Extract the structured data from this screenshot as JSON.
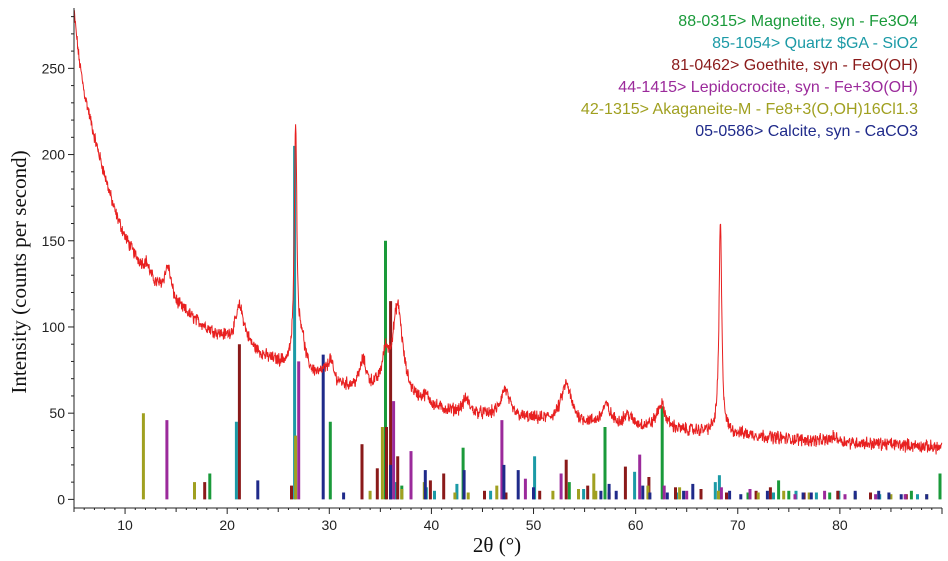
{
  "chart_data": {
    "type": "line",
    "xlabel": "2θ (°)",
    "ylabel": "Intensity (counts per second)",
    "xlim": [
      5,
      90
    ],
    "ylim": [
      -5,
      285
    ],
    "x_ticks": [
      10,
      20,
      30,
      40,
      50,
      60,
      70,
      80
    ],
    "y_ticks": [
      0,
      50,
      100,
      150,
      200,
      250
    ],
    "grid": false,
    "legend_position": "top-right",
    "pattern": {
      "color": "#e82020",
      "baseline": [
        [
          5,
          283
        ],
        [
          5.5,
          255
        ],
        [
          6,
          236
        ],
        [
          7,
          210
        ],
        [
          8,
          188
        ],
        [
          9,
          167
        ],
        [
          10,
          152
        ],
        [
          11,
          141
        ],
        [
          12,
          132
        ],
        [
          13,
          124
        ],
        [
          14,
          118
        ],
        [
          15,
          112
        ],
        [
          16,
          108
        ],
        [
          17,
          103
        ],
        [
          18,
          99
        ],
        [
          19,
          95
        ],
        [
          20,
          92
        ],
        [
          22,
          86
        ],
        [
          24,
          81
        ],
        [
          26,
          77
        ],
        [
          28,
          73
        ],
        [
          30,
          68
        ],
        [
          32,
          64
        ],
        [
          34,
          62
        ],
        [
          36,
          60
        ],
        [
          38,
          56
        ],
        [
          40,
          52
        ],
        [
          44,
          49
        ],
        [
          48,
          47
        ],
        [
          52,
          45
        ],
        [
          56,
          43
        ],
        [
          60,
          42
        ],
        [
          64,
          40
        ],
        [
          70,
          38
        ],
        [
          75,
          35
        ],
        [
          80,
          33
        ],
        [
          85,
          32
        ],
        [
          90,
          30
        ]
      ],
      "peaks": [
        {
          "x": 12.1,
          "height": 6,
          "width": 0.3
        },
        {
          "x": 14.2,
          "height": 18,
          "width": 0.4
        },
        {
          "x": 21.2,
          "height": 14,
          "width": 0.4
        },
        {
          "x": 21.4,
          "height": 10,
          "width": 0.8
        },
        {
          "x": 26.7,
          "height": 140,
          "width": 0.15
        },
        {
          "x": 27.3,
          "height": 18,
          "width": 0.35
        },
        {
          "x": 29.5,
          "height": 3,
          "width": 0.3
        },
        {
          "x": 30.1,
          "height": 12,
          "width": 0.3
        },
        {
          "x": 33.3,
          "height": 16,
          "width": 0.4
        },
        {
          "x": 35.5,
          "height": 18,
          "width": 0.4
        },
        {
          "x": 36.7,
          "height": 52,
          "width": 0.6
        },
        {
          "x": 39.5,
          "height": 5,
          "width": 0.5
        },
        {
          "x": 43.4,
          "height": 8,
          "width": 0.4
        },
        {
          "x": 47.2,
          "height": 16,
          "width": 0.5
        },
        {
          "x": 53.2,
          "height": 22,
          "width": 0.6
        },
        {
          "x": 57.1,
          "height": 11,
          "width": 0.5
        },
        {
          "x": 59.2,
          "height": 6,
          "width": 0.5
        },
        {
          "x": 62.5,
          "height": 14,
          "width": 0.5
        },
        {
          "x": 68.3,
          "height": 122,
          "width": 0.16
        },
        {
          "x": 79.5,
          "height": 3,
          "width": 0.5
        }
      ]
    },
    "series": [
      {
        "name": "88-0315> Magnetite, syn - Fe3O4",
        "color": "#1a9a3a",
        "sticks": [
          [
            18.3,
            15
          ],
          [
            30.1,
            45
          ],
          [
            35.5,
            150
          ],
          [
            37.1,
            8
          ],
          [
            43.1,
            30
          ],
          [
            53.5,
            10
          ],
          [
            57.0,
            42
          ],
          [
            62.6,
            54
          ],
          [
            71.0,
            4
          ],
          [
            74.0,
            11
          ],
          [
            75.0,
            5
          ],
          [
            79.0,
            4
          ],
          [
            87.0,
            5
          ],
          [
            89.8,
            15
          ]
        ]
      },
      {
        "name": "85-1054> Quartz $GA - SiO2",
        "color": "#1b9aa6",
        "sticks": [
          [
            20.9,
            45
          ],
          [
            26.6,
            205
          ],
          [
            36.5,
            10
          ],
          [
            39.5,
            7
          ],
          [
            40.3,
            5
          ],
          [
            42.5,
            9
          ],
          [
            45.8,
            5
          ],
          [
            50.1,
            25
          ],
          [
            54.9,
            6
          ],
          [
            59.9,
            16
          ],
          [
            64.0,
            4
          ],
          [
            67.8,
            10
          ],
          [
            68.2,
            14
          ],
          [
            73.5,
            4
          ],
          [
            75.7,
            5
          ],
          [
            77.7,
            4
          ],
          [
            79.9,
            5
          ],
          [
            81.5,
            4
          ],
          [
            83.9,
            3
          ],
          [
            87.6,
            3
          ]
        ]
      },
      {
        "name": "81-0462> Goethite, syn - FeO(OH)",
        "color": "#8a1a1a",
        "sticks": [
          [
            17.8,
            10
          ],
          [
            21.2,
            90
          ],
          [
            26.3,
            8
          ],
          [
            33.2,
            32
          ],
          [
            34.7,
            18
          ],
          [
            35.6,
            42
          ],
          [
            36.0,
            115
          ],
          [
            36.7,
            25
          ],
          [
            39.9,
            11
          ],
          [
            41.2,
            15
          ],
          [
            45.2,
            5
          ],
          [
            47.3,
            4
          ],
          [
            50.6,
            5
          ],
          [
            53.2,
            23
          ],
          [
            55.3,
            8
          ],
          [
            57.4,
            4
          ],
          [
            59.0,
            19
          ],
          [
            61.3,
            13
          ],
          [
            63.9,
            7
          ],
          [
            66.4,
            6
          ],
          [
            68.9,
            4
          ],
          [
            71.8,
            5
          ],
          [
            73.2,
            7
          ],
          [
            76.5,
            4
          ],
          [
            79.8,
            5
          ],
          [
            83.0,
            4
          ],
          [
            86.5,
            3
          ]
        ]
      },
      {
        "name": "44-1415> Lepidocrocite, syn - Fe+3O(OH)",
        "color": "#9b2a9b",
        "sticks": [
          [
            14.1,
            46
          ],
          [
            27.0,
            80
          ],
          [
            36.3,
            57
          ],
          [
            38.0,
            28
          ],
          [
            46.9,
            46
          ],
          [
            49.2,
            12
          ],
          [
            52.7,
            15
          ],
          [
            60.4,
            26
          ],
          [
            62.8,
            8
          ],
          [
            65.0,
            5
          ],
          [
            68.4,
            7
          ],
          [
            71.2,
            6
          ],
          [
            75.6,
            3
          ],
          [
            78.5,
            5
          ],
          [
            80.5,
            3
          ],
          [
            83.5,
            3
          ],
          [
            86.4,
            3
          ]
        ]
      },
      {
        "name": "42-1315> Akaganeite-M - Fe8+3(O,OH)16Cl1.3",
        "color": "#a0a020",
        "sticks": [
          [
            11.8,
            50
          ],
          [
            16.8,
            10
          ],
          [
            26.7,
            37
          ],
          [
            34.0,
            5
          ],
          [
            35.2,
            42
          ],
          [
            37.1,
            6
          ],
          [
            39.3,
            10
          ],
          [
            42.3,
            4
          ],
          [
            43.6,
            4
          ],
          [
            46.4,
            8
          ],
          [
            51.9,
            5
          ],
          [
            54.4,
            6
          ],
          [
            55.9,
            15
          ],
          [
            56.1,
            5
          ],
          [
            61.2,
            8
          ],
          [
            64.3,
            7
          ],
          [
            68.1,
            5
          ],
          [
            72.0,
            4
          ],
          [
            74.5,
            5
          ],
          [
            77.0,
            4
          ],
          [
            81.5,
            3
          ],
          [
            85.0,
            3
          ],
          [
            88.5,
            3
          ]
        ]
      },
      {
        "name": "05-0586> Calcite, syn - CaCO3",
        "color": "#1f2a8a",
        "sticks": [
          [
            23.0,
            11
          ],
          [
            29.4,
            84
          ],
          [
            31.4,
            4
          ],
          [
            36.0,
            20
          ],
          [
            39.4,
            17
          ],
          [
            43.2,
            17
          ],
          [
            47.1,
            20
          ],
          [
            48.5,
            17
          ],
          [
            50.0,
            7
          ],
          [
            56.6,
            5
          ],
          [
            57.4,
            9
          ],
          [
            58.1,
            5
          ],
          [
            60.7,
            8
          ],
          [
            61.4,
            4
          ],
          [
            63.1,
            4
          ],
          [
            64.7,
            5
          ],
          [
            65.6,
            9
          ],
          [
            69.2,
            5
          ],
          [
            70.3,
            3
          ],
          [
            72.9,
            5
          ],
          [
            76.4,
            4
          ],
          [
            77.2,
            4
          ],
          [
            81.5,
            5
          ],
          [
            83.8,
            5
          ],
          [
            84.8,
            4
          ],
          [
            86.0,
            3
          ],
          [
            88.5,
            3
          ]
        ]
      }
    ]
  }
}
